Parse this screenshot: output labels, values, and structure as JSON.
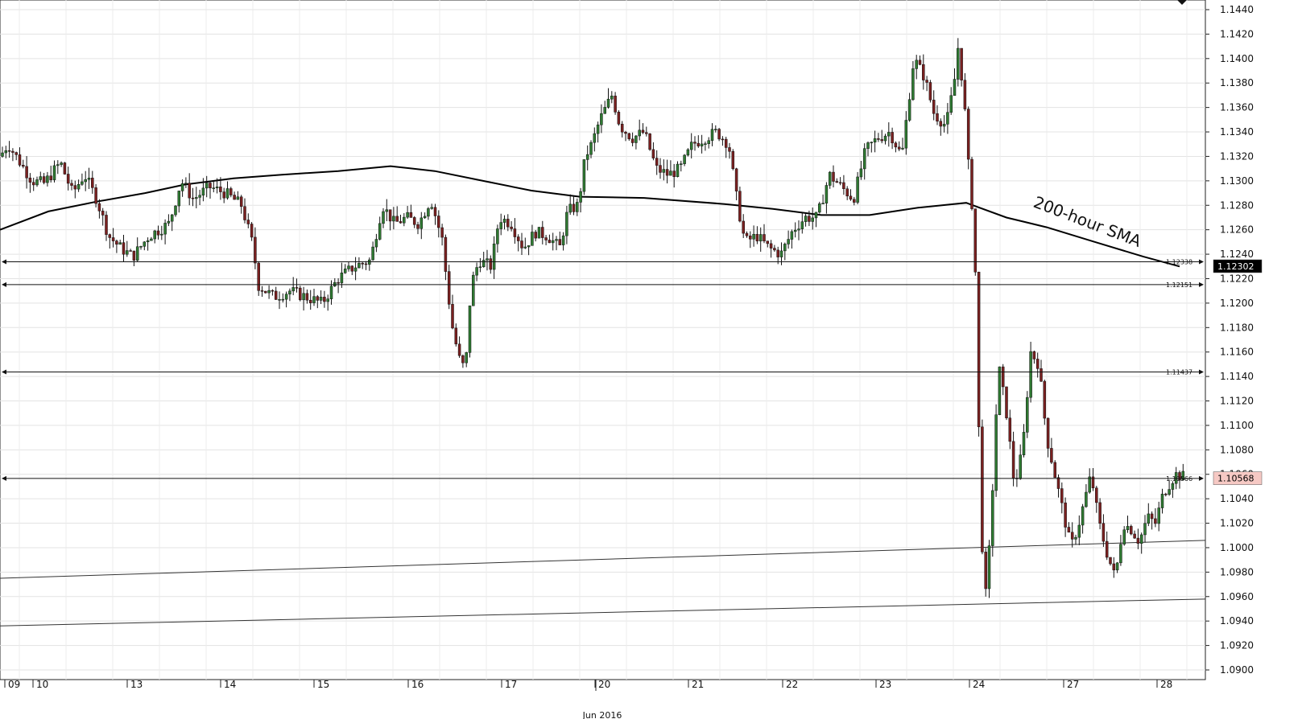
{
  "chart_data": {
    "type": "candlestick",
    "title": "",
    "xlabel": "",
    "ylabel": "",
    "ylim": [
      1.089,
      1.1445
    ],
    "y_ticks": [
      "1.1440",
      "1.1420",
      "1.1400",
      "1.1380",
      "1.1360",
      "1.1340",
      "1.1320",
      "1.1300",
      "1.1280",
      "1.1260",
      "1.1240",
      "1.1220",
      "1.1200",
      "1.1180",
      "1.1160",
      "1.1140",
      "1.1120",
      "1.1100",
      "1.1080",
      "1.1060",
      "1.1040",
      "1.1020",
      "1.1000",
      "1.0980",
      "1.0960",
      "1.0940",
      "1.0920",
      "1.0900"
    ],
    "x_day_labels": [
      "09",
      "10",
      "13",
      "14",
      "15",
      "16",
      "17",
      "20",
      "21",
      "22",
      "23",
      "24",
      "27",
      "28"
    ],
    "month_label": "Jun 2016",
    "grid": true,
    "horizontal_levels": [
      {
        "value": 1.12338,
        "label": "1.12338"
      },
      {
        "value": 1.12151,
        "label": "1.12151"
      },
      {
        "value": 1.11437,
        "label": "1.11437"
      },
      {
        "value": 1.10566,
        "label": "1.10566"
      }
    ],
    "price_badges": [
      {
        "value": 1.12302,
        "label": "1.12302",
        "bg": "#000000",
        "fg": "#ffffff"
      },
      {
        "value": 1.10568,
        "label": "1.10568",
        "bg": "#f6c9c4",
        "fg": "#000000"
      }
    ],
    "annotation": "200-hour SMA",
    "sma_series": [
      [
        0,
        1.126
      ],
      [
        60,
        1.1275
      ],
      [
        120,
        1.1283
      ],
      [
        180,
        1.129
      ],
      [
        230,
        1.1297
      ],
      [
        290,
        1.1302
      ],
      [
        350,
        1.1305
      ],
      [
        420,
        1.1308
      ],
      [
        485,
        1.1312
      ],
      [
        540,
        1.1308
      ],
      [
        600,
        1.13
      ],
      [
        660,
        1.1292
      ],
      [
        720,
        1.1287
      ],
      [
        800,
        1.1286
      ],
      [
        900,
        1.1281
      ],
      [
        960,
        1.1277
      ],
      [
        1020,
        1.1272
      ],
      [
        1080,
        1.1272
      ],
      [
        1140,
        1.1278
      ],
      [
        1200,
        1.1282
      ],
      [
        1250,
        1.127
      ],
      [
        1300,
        1.1262
      ],
      [
        1360,
        1.125
      ],
      [
        1420,
        1.1238
      ],
      [
        1465,
        1.123
      ]
    ],
    "trendlines": [
      {
        "x1": 0,
        "y1": 1.0975,
        "x2": 1497,
        "y2": 1.1006
      },
      {
        "x1": 0,
        "y1": 1.0936,
        "x2": 1497,
        "y2": 1.0958
      }
    ],
    "anchors": [
      [
        0,
        1.132
      ],
      [
        10,
        1.133
      ],
      [
        25,
        1.1315
      ],
      [
        40,
        1.13
      ],
      [
        55,
        1.1298
      ],
      [
        75,
        1.1315
      ],
      [
        90,
        1.129
      ],
      [
        105,
        1.1305
      ],
      [
        120,
        1.1285
      ],
      [
        135,
        1.1255
      ],
      [
        150,
        1.1245
      ],
      [
        165,
        1.1238
      ],
      [
        185,
        1.1255
      ],
      [
        210,
        1.1265
      ],
      [
        225,
        1.13
      ],
      [
        240,
        1.1285
      ],
      [
        260,
        1.1295
      ],
      [
        280,
        1.129
      ],
      [
        300,
        1.128
      ],
      [
        315,
        1.1245
      ],
      [
        320,
        1.1215
      ],
      [
        340,
        1.1205
      ],
      [
        360,
        1.121
      ],
      [
        380,
        1.1205
      ],
      [
        400,
        1.12
      ],
      [
        420,
        1.122
      ],
      [
        440,
        1.123
      ],
      [
        460,
        1.1235
      ],
      [
        475,
        1.128
      ],
      [
        490,
        1.1265
      ],
      [
        505,
        1.127
      ],
      [
        520,
        1.1265
      ],
      [
        535,
        1.1285
      ],
      [
        550,
        1.125
      ],
      [
        555,
        1.1215
      ],
      [
        562,
        1.118
      ],
      [
        570,
        1.1155
      ],
      [
        578,
        1.1145
      ],
      [
        585,
        1.1215
      ],
      [
        595,
        1.1235
      ],
      [
        610,
        1.123
      ],
      [
        620,
        1.127
      ],
      [
        635,
        1.1265
      ],
      [
        650,
        1.1245
      ],
      [
        665,
        1.1258
      ],
      [
        680,
        1.1255
      ],
      [
        695,
        1.1245
      ],
      [
        705,
        1.1275
      ],
      [
        718,
        1.128
      ],
      [
        727,
        1.132
      ],
      [
        735,
        1.133
      ],
      [
        745,
        1.135
      ],
      [
        760,
        1.137
      ],
      [
        770,
        1.1345
      ],
      [
        785,
        1.1335
      ],
      [
        800,
        1.134
      ],
      [
        815,
        1.131
      ],
      [
        830,
        1.1305
      ],
      [
        845,
        1.131
      ],
      [
        860,
        1.133
      ],
      [
        875,
        1.1335
      ],
      [
        890,
        1.134
      ],
      [
        905,
        1.133
      ],
      [
        915,
        1.1285
      ],
      [
        925,
        1.125
      ],
      [
        940,
        1.1255
      ],
      [
        955,
        1.1245
      ],
      [
        970,
        1.124
      ],
      [
        985,
        1.126
      ],
      [
        1000,
        1.127
      ],
      [
        1015,
        1.127
      ],
      [
        1030,
        1.1305
      ],
      [
        1045,
        1.1295
      ],
      [
        1060,
        1.1285
      ],
      [
        1075,
        1.1325
      ],
      [
        1090,
        1.1335
      ],
      [
        1105,
        1.134
      ],
      [
        1120,
        1.132
      ],
      [
        1135,
        1.14
      ],
      [
        1148,
        1.1385
      ],
      [
        1160,
        1.1355
      ],
      [
        1175,
        1.1345
      ],
      [
        1185,
        1.138
      ],
      [
        1190,
        1.141
      ],
      [
        1197,
        1.137
      ],
      [
        1203,
        1.131
      ],
      [
        1210,
        1.126
      ],
      [
        1213,
        1.118
      ],
      [
        1218,
        1.102
      ],
      [
        1224,
        1.096
      ],
      [
        1230,
        1.101
      ],
      [
        1240,
        1.115
      ],
      [
        1250,
        1.111
      ],
      [
        1260,
        1.105
      ],
      [
        1270,
        1.108
      ],
      [
        1280,
        1.116
      ],
      [
        1290,
        1.115
      ],
      [
        1300,
        1.109
      ],
      [
        1310,
        1.106
      ],
      [
        1320,
        1.103
      ],
      [
        1330,
        1.1
      ],
      [
        1340,
        1.102
      ],
      [
        1355,
        1.106
      ],
      [
        1365,
        1.102
      ],
      [
        1375,
        1.0995
      ],
      [
        1385,
        1.0975
      ],
      [
        1395,
        1.102
      ],
      [
        1405,
        1.1015
      ],
      [
        1415,
        1.1005
      ],
      [
        1425,
        1.1025
      ],
      [
        1435,
        1.102
      ],
      [
        1445,
        1.1045
      ],
      [
        1460,
        1.106
      ],
      [
        1470,
        1.1058
      ]
    ]
  }
}
